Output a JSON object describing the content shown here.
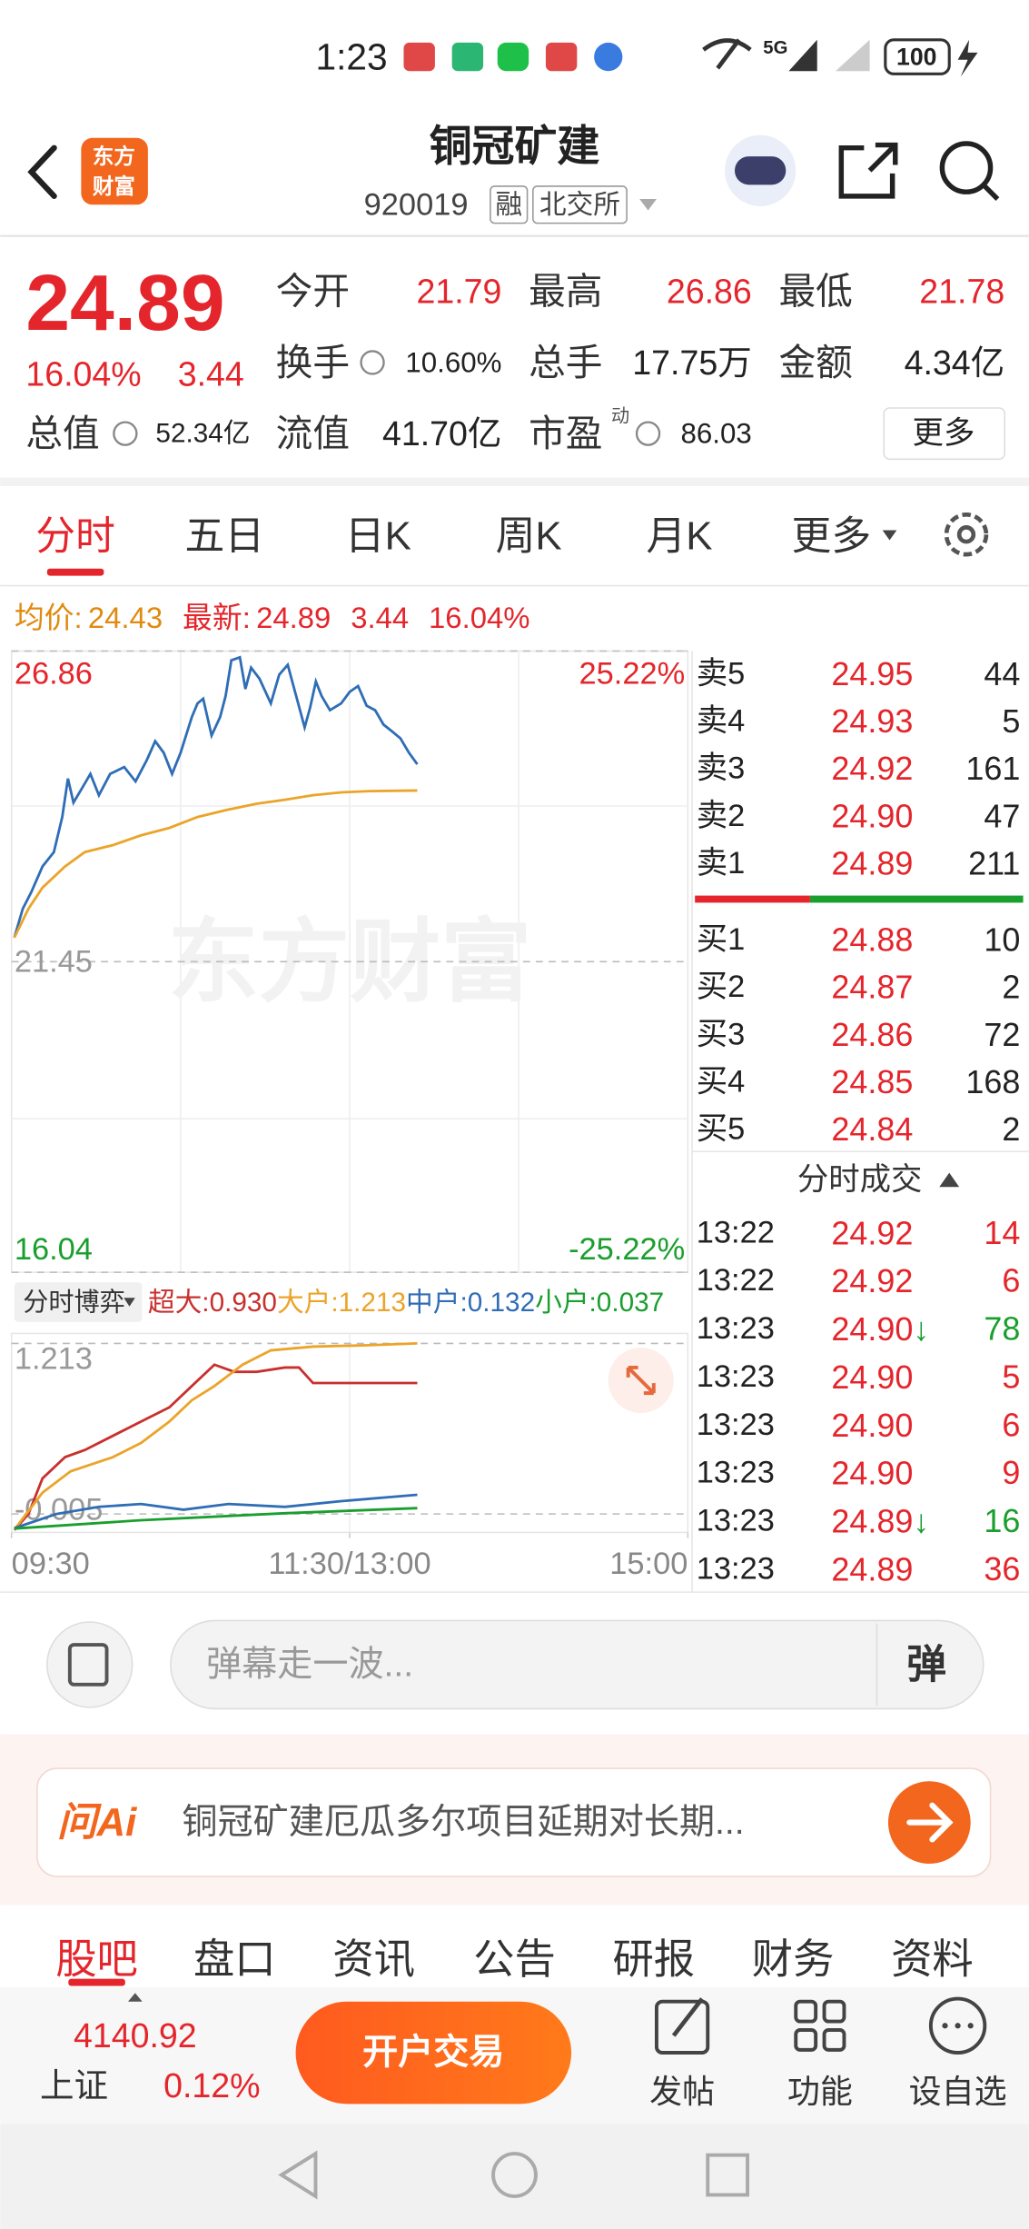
{
  "status_bar": {
    "time": "1:23",
    "network": "5G",
    "battery": "100"
  },
  "header": {
    "logo": [
      "东方",
      "财富"
    ],
    "title": "铜冠矿建",
    "code": "920019",
    "tags": [
      "融",
      "北交所"
    ]
  },
  "quote": {
    "price": "24.89",
    "change_pct": "16.04%",
    "change": "3.44",
    "fields": [
      {
        "label": "今开",
        "value": "21.79",
        "color": "#e4262c"
      },
      {
        "label": "最高",
        "value": "26.86",
        "color": "#e4262c"
      },
      {
        "label": "最低",
        "value": "21.78",
        "color": "#e4262c"
      },
      {
        "label": "换手",
        "value": "10.60%",
        "color": "#222222"
      },
      {
        "label": "总手",
        "value": "17.75万",
        "color": "#222222"
      },
      {
        "label": "金额",
        "value": "4.34亿",
        "color": "#222222"
      },
      {
        "label": "总值",
        "value": "52.34亿",
        "color": "#222222"
      },
      {
        "label": "流值",
        "value": "41.70亿",
        "color": "#222222"
      },
      {
        "label": "市盈",
        "value": "86.03",
        "color": "#222222"
      }
    ],
    "pe_note": "动",
    "more": "更多"
  },
  "tabs": [
    "分时",
    "五日",
    "日K",
    "周K",
    "月K",
    "更多"
  ],
  "summary": {
    "avg_label": "均价:",
    "avg": "24.43",
    "latest_label": "最新:",
    "latest": "24.89",
    "change": "3.44",
    "change_pct": "16.04%"
  },
  "watermark": "东方财富",
  "chart_data": [
    {
      "type": "line",
      "xlim": [
        0,
        240
      ],
      "ylim": [
        16.04,
        26.86
      ],
      "yticks": [
        26.86,
        21.45,
        16.04
      ],
      "ytick_colors": [
        "#e4262c",
        "#999999",
        "#1a9e2e"
      ],
      "y2lim": [
        -25.22,
        25.22
      ],
      "y2ticks": [
        {
          "value": 25.22,
          "label": "25.22%"
        },
        {
          "value": -25.22,
          "label": "-25.22%"
        }
      ],
      "y2tick_colors": [
        "#e4262c",
        "#1a9e2e"
      ],
      "grid": true,
      "series": [
        {
          "color": "#2f6db5",
          "x": [
            1,
            4,
            7,
            11,
            15,
            18,
            20,
            22,
            25,
            28,
            31,
            35,
            40,
            44,
            48,
            51,
            54,
            57,
            60,
            64,
            66,
            68,
            71,
            74,
            76,
            78,
            81,
            83,
            85,
            88,
            92,
            95,
            98,
            101,
            104,
            106,
            108,
            110,
            113,
            117,
            120,
            123,
            126,
            129,
            132,
            135,
            138,
            141,
            144
          ],
          "values": [
            21.87,
            22.37,
            22.66,
            23.11,
            23.36,
            23.97,
            24.64,
            24.22,
            24.47,
            24.72,
            24.35,
            24.72,
            24.84,
            24.59,
            24.96,
            25.29,
            25.09,
            24.72,
            25.09,
            25.71,
            25.95,
            26.03,
            25.39,
            25.71,
            26.08,
            26.7,
            26.75,
            26.2,
            26.57,
            26.38,
            25.95,
            26.45,
            26.62,
            26.08,
            25.53,
            25.88,
            26.33,
            26.08,
            25.83,
            25.95,
            26.15,
            26.25,
            25.91,
            25.83,
            25.58,
            25.46,
            25.34,
            25.09,
            24.89
          ]
        },
        {
          "color": "#eba42a",
          "x": [
            1,
            6,
            11,
            19,
            26,
            36,
            46,
            56,
            66,
            77,
            87,
            97,
            107,
            117,
            127,
            144
          ],
          "values": [
            21.87,
            22.37,
            22.74,
            23.11,
            23.36,
            23.48,
            23.65,
            23.78,
            23.97,
            24.1,
            24.2,
            24.27,
            24.35,
            24.4,
            24.42,
            24.43
          ]
        }
      ]
    },
    {
      "type": "line",
      "title": "分时博弈",
      "xlim": [
        0,
        240
      ],
      "xticks": [
        {
          "value": 0,
          "label": "09:30"
        },
        {
          "value": 120,
          "label": "11:30/13:00"
        },
        {
          "value": 240,
          "label": "15:00"
        }
      ],
      "ylim": [
        -0.137,
        1.264
      ],
      "yticks": [
        1.213,
        -0.005
      ],
      "ytick_colors": [
        "#999999",
        "#999999"
      ],
      "grid": true,
      "series": [
        {
          "name": "超大:",
          "latest_label": "0.930",
          "color": "#c8302e",
          "x": [
            1,
            6,
            11,
            19,
            26,
            36,
            46,
            56,
            64,
            72,
            79,
            87,
            97,
            102,
            107,
            144
          ],
          "values": [
            -0.12,
            -0.005,
            0.249,
            0.401,
            0.452,
            0.553,
            0.655,
            0.756,
            0.909,
            1.061,
            1.01,
            1.01,
            1.041,
            1.041,
            0.93,
            0.93
          ]
        },
        {
          "name": "大户:",
          "latest_label": "1.213",
          "color": "#eba42a",
          "x": [
            1,
            11,
            21,
            36,
            46,
            56,
            64,
            72,
            82,
            92,
            107,
            127,
            144
          ],
          "values": [
            -0.117,
            0.147,
            0.3,
            0.401,
            0.503,
            0.655,
            0.807,
            0.909,
            1.061,
            1.163,
            1.19,
            1.2,
            1.213
          ]
        },
        {
          "name": "中户:",
          "latest_label": "0.132",
          "color": "#2f6db5",
          "x": [
            1,
            16,
            31,
            46,
            61,
            77,
            97,
            117,
            144
          ],
          "values": [
            -0.107,
            -0.005,
            0.046,
            0.066,
            0.025,
            0.066,
            0.046,
            0.086,
            0.132
          ]
        },
        {
          "name": "小户:",
          "latest_label": "0.037",
          "color": "#1a9e2e",
          "x": [
            1,
            46,
            97,
            144
          ],
          "values": [
            -0.11,
            -0.05,
            0.0,
            0.037
          ]
        }
      ]
    }
  ],
  "order_book": {
    "asks": [
      {
        "label": "卖5",
        "price": "24.95",
        "volume": "44"
      },
      {
        "label": "卖4",
        "price": "24.93",
        "volume": "5"
      },
      {
        "label": "卖3",
        "price": "24.92",
        "volume": "161"
      },
      {
        "label": "卖2",
        "price": "24.90",
        "volume": "47"
      },
      {
        "label": "卖1",
        "price": "24.89",
        "volume": "211"
      }
    ],
    "bids": [
      {
        "label": "买1",
        "price": "24.88",
        "volume": "10"
      },
      {
        "label": "买2",
        "price": "24.87",
        "volume": "2"
      },
      {
        "label": "买3",
        "price": "24.86",
        "volume": "72"
      },
      {
        "label": "买4",
        "price": "24.85",
        "volume": "168"
      },
      {
        "label": "买5",
        "price": "24.84",
        "volume": "2"
      }
    ]
  },
  "trades": {
    "title": "分时成交",
    "rows": [
      {
        "time": "13:22",
        "price": "24.92",
        "volume": "14",
        "color": "#e4262c"
      },
      {
        "time": "13:22",
        "price": "24.92",
        "volume": "6",
        "color": "#e4262c"
      },
      {
        "time": "13:23",
        "price": "24.90",
        "arrow": "↓",
        "volume": "78",
        "color": "#1a9e2e"
      },
      {
        "time": "13:23",
        "price": "24.90",
        "volume": "5",
        "color": "#e4262c"
      },
      {
        "time": "13:23",
        "price": "24.90",
        "volume": "6",
        "color": "#e4262c"
      },
      {
        "time": "13:23",
        "price": "24.90",
        "volume": "9",
        "color": "#e4262c"
      },
      {
        "time": "13:23",
        "price": "24.89",
        "arrow": "↓",
        "volume": "16",
        "color": "#1a9e2e"
      },
      {
        "time": "13:23",
        "price": "24.89",
        "volume": "36",
        "color": "#e4262c"
      }
    ]
  },
  "comment": {
    "placeholder": "弹幕走一波...",
    "button": "弹"
  },
  "ai": {
    "logo": "问Ai",
    "text": "铜冠矿建厄瓜多尔项目延期对长期..."
  },
  "bottom_tabs": [
    "股吧",
    "盘口",
    "资讯",
    "公告",
    "研报",
    "财务",
    "资料"
  ],
  "index": {
    "value": "4140.92",
    "name": "上证",
    "change_pct": "0.12%"
  },
  "toolbar": {
    "trade": "开户交易",
    "actions": [
      "发帖",
      "功能",
      "设自选"
    ]
  }
}
